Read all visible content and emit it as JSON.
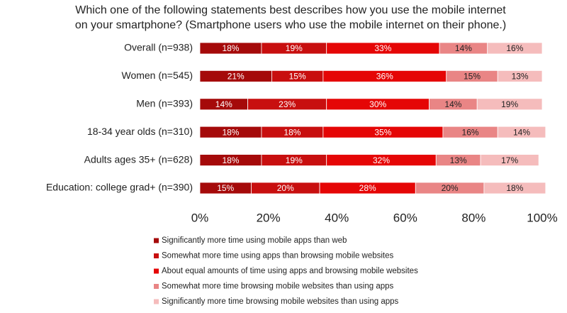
{
  "chart_data": {
    "type": "stacked-bar-horizontal",
    "title_lines": [
      "Which one of the following statements best describes how you use the mobile internet",
      "on your smartphone? (Smartphone users who use the mobile internet on their phone.)"
    ],
    "categories": [
      "Overall (n=938)",
      "Women (n=545)",
      "Men (n=393)",
      "18-34 year olds (n=310)",
      "Adults ages 35+ (n=628)",
      "Education:  college grad+ (n=390)"
    ],
    "series": [
      {
        "name": "Significantly more time using mobile apps than web",
        "color": "#a50a0a",
        "values": [
          18,
          21,
          14,
          18,
          18,
          15
        ],
        "value_labels": [
          "18%",
          "21%",
          "14%",
          "18%",
          "18%",
          "15%"
        ]
      },
      {
        "name": "Somewhat more time using apps than browsing mobile websites",
        "color": "#c80f0f",
        "values": [
          19,
          15,
          23,
          18,
          19,
          20
        ],
        "value_labels": [
          "19%",
          "15%",
          "23%",
          "18%",
          "19%",
          "20%"
        ]
      },
      {
        "name": "About equal amounts of time using apps and browsing mobile websites",
        "color": "#e50606",
        "values": [
          33,
          36,
          30,
          35,
          32,
          28
        ],
        "value_labels": [
          "33%",
          "36%",
          "30%",
          "35%",
          "32%",
          "28%"
        ]
      },
      {
        "name": "Somewhat more time browsing mobile websites than using apps",
        "color": "#e98585",
        "values": [
          14,
          15,
          14,
          16,
          13,
          20
        ],
        "value_labels": [
          "14%",
          "15%",
          "14%",
          "16%",
          "13%",
          "20%"
        ]
      },
      {
        "name": "Significantly more time browsing mobile websites than using apps",
        "color": "#f5bcbc",
        "values": [
          16,
          13,
          19,
          14,
          17,
          18
        ],
        "value_labels": [
          "16%",
          "13%",
          "19%",
          "14%",
          "17%",
          "18%"
        ]
      }
    ],
    "xlim": [
      0,
      100
    ],
    "xticks": [
      {
        "value": 0,
        "label": "0%"
      },
      {
        "value": 20,
        "label": "20%"
      },
      {
        "value": 40,
        "label": "40%"
      },
      {
        "value": 60,
        "label": "60%"
      },
      {
        "value": 80,
        "label": "80%"
      },
      {
        "value": 100,
        "label": "100%"
      }
    ],
    "grid": false
  }
}
